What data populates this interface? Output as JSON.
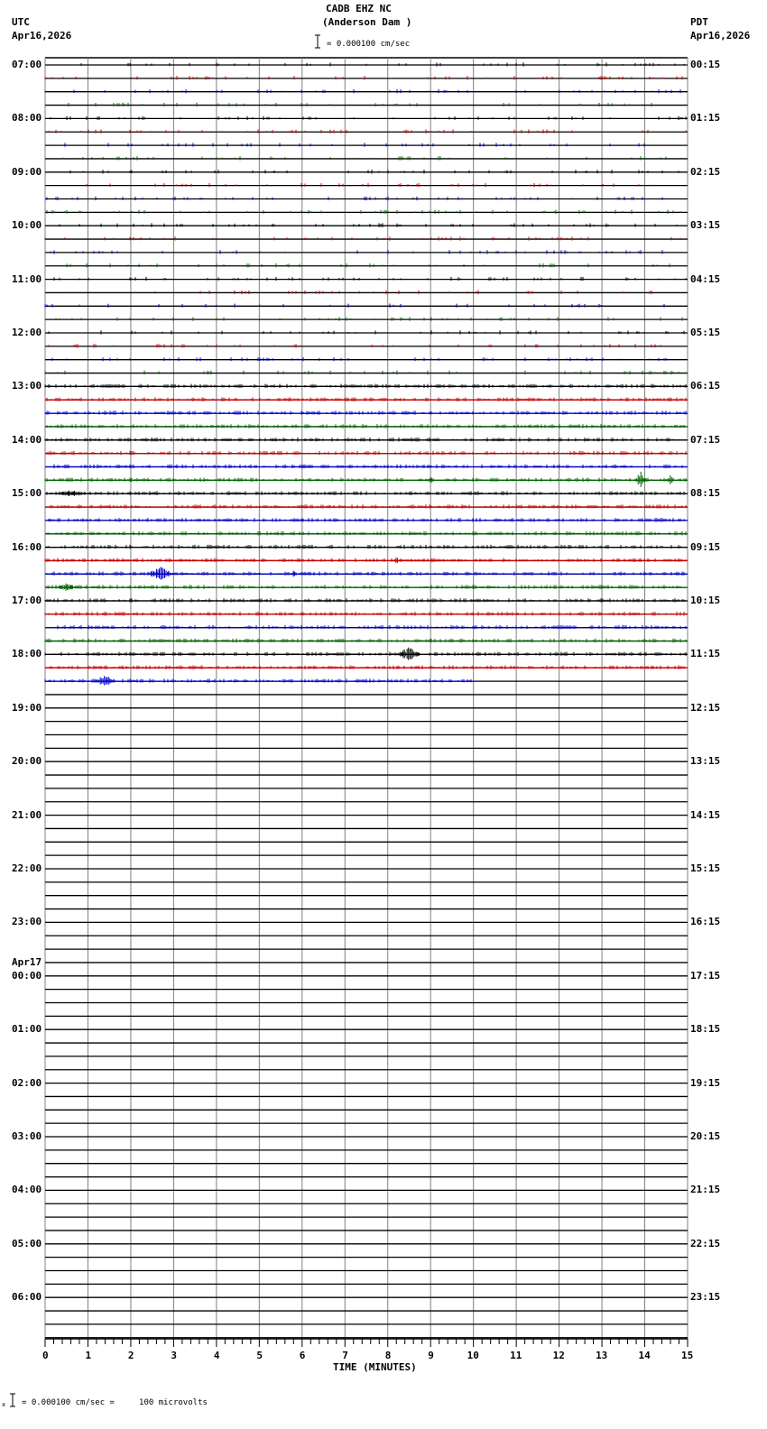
{
  "header": {
    "station": "CADB EHZ NC",
    "location": "(Anderson Dam )",
    "left_tz": "UTC",
    "left_date": "Apr16,2026",
    "right_tz": "PDT",
    "right_date": "Apr16,2026",
    "scale_text": "= 0.000100 cm/sec"
  },
  "footer": {
    "scale_text": "= 0.000100 cm/sec =     100 microvolts",
    "prefix": "x"
  },
  "colors": {
    "trace_cycle": [
      "#000000",
      "#cc0000",
      "#0000cc",
      "#006600"
    ],
    "grid": "#808080",
    "baseline": "#000000"
  },
  "chart_data": {
    "type": "line",
    "title": "CADB EHZ NC (Anderson Dam )",
    "xlabel": "TIME (MINUTES)",
    "ylabel": "",
    "x_ticks": [
      0,
      1,
      2,
      3,
      4,
      5,
      6,
      7,
      8,
      9,
      10,
      11,
      12,
      13,
      14,
      15
    ],
    "xlim": [
      0,
      15
    ],
    "traces_per_hour": 4,
    "minutes_per_trace": 15,
    "total_traces": 96,
    "filled_traces": 47,
    "last_trace_end_minute": 10,
    "left_labels": [
      {
        "row": 0,
        "text": "07:00"
      },
      {
        "row": 4,
        "text": "08:00"
      },
      {
        "row": 8,
        "text": "09:00"
      },
      {
        "row": 12,
        "text": "10:00"
      },
      {
        "row": 16,
        "text": "11:00"
      },
      {
        "row": 20,
        "text": "12:00"
      },
      {
        "row": 24,
        "text": "13:00"
      },
      {
        "row": 28,
        "text": "14:00"
      },
      {
        "row": 32,
        "text": "15:00"
      },
      {
        "row": 36,
        "text": "16:00"
      },
      {
        "row": 40,
        "text": "17:00"
      },
      {
        "row": 44,
        "text": "18:00"
      },
      {
        "row": 48,
        "text": "19:00"
      },
      {
        "row": 52,
        "text": "20:00"
      },
      {
        "row": 56,
        "text": "21:00"
      },
      {
        "row": 60,
        "text": "22:00"
      },
      {
        "row": 64,
        "text": "23:00"
      },
      {
        "row": 68,
        "text": "00:00",
        "date": "Apr17"
      },
      {
        "row": 72,
        "text": "01:00"
      },
      {
        "row": 76,
        "text": "02:00"
      },
      {
        "row": 80,
        "text": "03:00"
      },
      {
        "row": 84,
        "text": "04:00"
      },
      {
        "row": 88,
        "text": "05:00"
      },
      {
        "row": 92,
        "text": "06:00"
      }
    ],
    "right_labels": [
      {
        "row": 0,
        "text": "00:15"
      },
      {
        "row": 4,
        "text": "01:15"
      },
      {
        "row": 8,
        "text": "02:15"
      },
      {
        "row": 12,
        "text": "03:15"
      },
      {
        "row": 16,
        "text": "04:15"
      },
      {
        "row": 20,
        "text": "05:15"
      },
      {
        "row": 24,
        "text": "06:15"
      },
      {
        "row": 28,
        "text": "07:15"
      },
      {
        "row": 32,
        "text": "08:15"
      },
      {
        "row": 36,
        "text": "09:15"
      },
      {
        "row": 40,
        "text": "10:15"
      },
      {
        "row": 44,
        "text": "11:15"
      },
      {
        "row": 48,
        "text": "12:15"
      },
      {
        "row": 52,
        "text": "13:15"
      },
      {
        "row": 56,
        "text": "14:15"
      },
      {
        "row": 60,
        "text": "15:15"
      },
      {
        "row": 64,
        "text": "16:15"
      },
      {
        "row": 68,
        "text": "17:15"
      },
      {
        "row": 72,
        "text": "18:15"
      },
      {
        "row": 76,
        "text": "19:15"
      },
      {
        "row": 80,
        "text": "20:15"
      },
      {
        "row": 84,
        "text": "21:15"
      },
      {
        "row": 88,
        "text": "22:15"
      },
      {
        "row": 92,
        "text": "23:15"
      }
    ],
    "events": [
      {
        "row": 31,
        "minute": 13.9,
        "amp": 10,
        "dur": 0.3
      },
      {
        "row": 31,
        "minute": 14.6,
        "amp": 7,
        "dur": 0.2
      },
      {
        "row": 31,
        "minute": 9.0,
        "amp": 5,
        "dur": 0.2
      },
      {
        "row": 32,
        "minute": 0.6,
        "amp": 5,
        "dur": 0.9
      },
      {
        "row": 37,
        "minute": 8.2,
        "amp": 4,
        "dur": 0.2
      },
      {
        "row": 38,
        "minute": 2.7,
        "amp": 9,
        "dur": 0.7
      },
      {
        "row": 38,
        "minute": 5.8,
        "amp": 4,
        "dur": 0.2
      },
      {
        "row": 39,
        "minute": 0.5,
        "amp": 5,
        "dur": 0.6
      },
      {
        "row": 44,
        "minute": 8.5,
        "amp": 9,
        "dur": 0.6
      },
      {
        "row": 46,
        "minute": 1.4,
        "amp": 7,
        "dur": 0.6
      }
    ]
  }
}
